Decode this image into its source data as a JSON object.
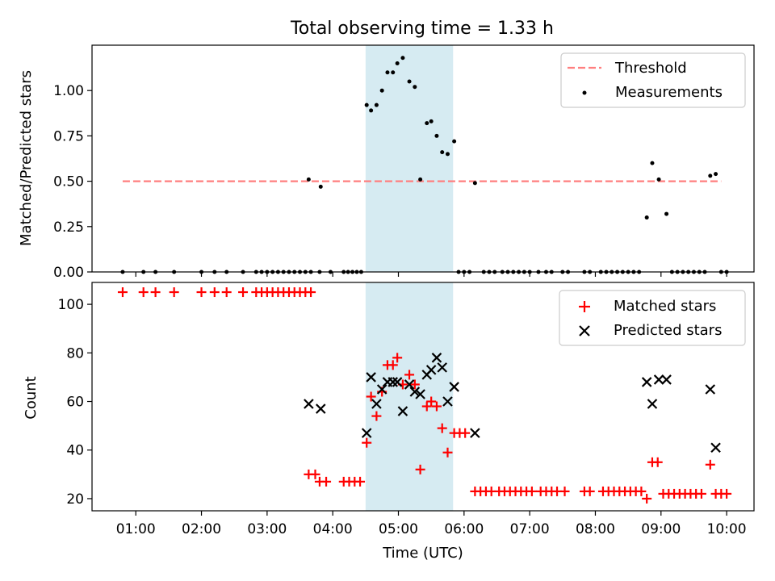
{
  "figure": {
    "title": "Total observing time = 1.33 h",
    "xlabel": "Time (UTC)",
    "xticks": [
      "01:00",
      "02:00",
      "03:00",
      "04:00",
      "05:00",
      "06:00",
      "07:00",
      "08:00",
      "09:00",
      "10:00"
    ],
    "band_color": "#add8e6"
  },
  "chart_data": [
    {
      "type": "scatter",
      "ylabel": "Matched/Predicted stars",
      "xlim": [
        "00:20",
        "10:25"
      ],
      "ylim": [
        0,
        1.25
      ],
      "yticks": [
        "0.00",
        "0.25",
        "0.50",
        "0.75",
        "1.00"
      ],
      "shaded_region": {
        "x": [
          "04:30",
          "05:50"
        ]
      },
      "legend": {
        "position": "top-right",
        "entries": [
          {
            "name": "Threshold",
            "color": "#ff7f7f"
          },
          {
            "name": "Measurements",
            "color": "#000000"
          }
        ]
      },
      "threshold": {
        "name": "Threshold",
        "value": 0.5,
        "x": [
          "00:48",
          "09:55"
        ],
        "color": "#ff7f7f"
      },
      "series": [
        {
          "name": "Measurements",
          "color": "#000000",
          "points": [
            [
              "00:48",
              0
            ],
            [
              "01:07",
              0
            ],
            [
              "01:18",
              0
            ],
            [
              "01:35",
              0
            ],
            [
              "02:00",
              0
            ],
            [
              "02:12",
              0
            ],
            [
              "02:23",
              0
            ],
            [
              "02:38",
              0
            ],
            [
              "02:50",
              0
            ],
            [
              "02:55",
              0
            ],
            [
              "03:00",
              0
            ],
            [
              "03:05",
              0
            ],
            [
              "03:10",
              0
            ],
            [
              "03:15",
              0
            ],
            [
              "03:20",
              0
            ],
            [
              "03:25",
              0
            ],
            [
              "03:30",
              0
            ],
            [
              "03:35",
              0
            ],
            [
              "03:40",
              0
            ],
            [
              "03:38",
              0.51
            ],
            [
              "03:48",
              0
            ],
            [
              "03:49",
              0.47
            ],
            [
              "03:58",
              0
            ],
            [
              "04:10",
              0
            ],
            [
              "04:14",
              0
            ],
            [
              "04:18",
              0
            ],
            [
              "04:22",
              0
            ],
            [
              "04:26",
              0
            ],
            [
              "04:31",
              0.92
            ],
            [
              "04:35",
              0.89
            ],
            [
              "04:40",
              0.92
            ],
            [
              "04:45",
              1.0
            ],
            [
              "04:50",
              1.1
            ],
            [
              "04:55",
              1.1
            ],
            [
              "04:59",
              1.15
            ],
            [
              "05:04",
              1.18
            ],
            [
              "05:10",
              1.05
            ],
            [
              "05:15",
              1.02
            ],
            [
              "05:20",
              0.51
            ],
            [
              "05:26",
              0.82
            ],
            [
              "05:30",
              0.83
            ],
            [
              "05:35",
              0.75
            ],
            [
              "05:40",
              0.66
            ],
            [
              "05:45",
              0.65
            ],
            [
              "05:51",
              0.72
            ],
            [
              "05:55",
              0
            ],
            [
              "06:00",
              0
            ],
            [
              "06:05",
              0
            ],
            [
              "06:10",
              0.49
            ],
            [
              "06:18",
              0
            ],
            [
              "06:23",
              0
            ],
            [
              "06:28",
              0
            ],
            [
              "06:35",
              0
            ],
            [
              "06:40",
              0
            ],
            [
              "06:45",
              0
            ],
            [
              "06:50",
              0
            ],
            [
              "06:55",
              0
            ],
            [
              "07:00",
              0
            ],
            [
              "07:08",
              0
            ],
            [
              "07:15",
              0
            ],
            [
              "07:20",
              0
            ],
            [
              "07:30",
              0
            ],
            [
              "07:35",
              0
            ],
            [
              "07:50",
              0
            ],
            [
              "07:55",
              0
            ],
            [
              "08:05",
              0
            ],
            [
              "08:10",
              0
            ],
            [
              "08:15",
              0
            ],
            [
              "08:20",
              0
            ],
            [
              "08:25",
              0
            ],
            [
              "08:30",
              0
            ],
            [
              "08:35",
              0
            ],
            [
              "08:40",
              0
            ],
            [
              "08:47",
              0.3
            ],
            [
              "08:52",
              0.6
            ],
            [
              "08:58",
              0.51
            ],
            [
              "09:05",
              0.32
            ],
            [
              "09:10",
              0
            ],
            [
              "09:15",
              0
            ],
            [
              "09:20",
              0
            ],
            [
              "09:25",
              0
            ],
            [
              "09:30",
              0
            ],
            [
              "09:35",
              0
            ],
            [
              "09:40",
              0
            ],
            [
              "09:45",
              0.53
            ],
            [
              "09:50",
              0.54
            ],
            [
              "09:55",
              0
            ],
            [
              "10:00",
              0
            ]
          ]
        }
      ]
    },
    {
      "type": "scatter",
      "ylabel": "Count",
      "xlim": [
        "00:20",
        "10:25"
      ],
      "ylim": [
        15,
        109
      ],
      "yticks": [
        "20",
        "40",
        "60",
        "80",
        "100"
      ],
      "shaded_region": {
        "x": [
          "04:30",
          "05:50"
        ]
      },
      "legend": {
        "position": "top-right",
        "entries": [
          {
            "name": "Matched stars",
            "color": "#ff0000",
            "marker": "+"
          },
          {
            "name": "Predicted stars",
            "color": "#000000",
            "marker": "x"
          }
        ]
      },
      "series": [
        {
          "name": "Matched stars",
          "color": "#ff0000",
          "marker": "+",
          "points": [
            [
              "00:48",
              105
            ],
            [
              "01:07",
              105
            ],
            [
              "01:18",
              105
            ],
            [
              "01:35",
              105
            ],
            [
              "02:00",
              105
            ],
            [
              "02:12",
              105
            ],
            [
              "02:23",
              105
            ],
            [
              "02:38",
              105
            ],
            [
              "02:50",
              105
            ],
            [
              "02:55",
              105
            ],
            [
              "03:00",
              105
            ],
            [
              "03:05",
              105
            ],
            [
              "03:10",
              105
            ],
            [
              "03:15",
              105
            ],
            [
              "03:20",
              105
            ],
            [
              "03:25",
              105
            ],
            [
              "03:30",
              105
            ],
            [
              "03:35",
              105
            ],
            [
              "03:40",
              105
            ],
            [
              "03:38",
              30
            ],
            [
              "03:44",
              30
            ],
            [
              "03:48",
              27
            ],
            [
              "03:54",
              27
            ],
            [
              "04:10",
              27
            ],
            [
              "04:15",
              27
            ],
            [
              "04:20",
              27
            ],
            [
              "04:25",
              27
            ],
            [
              "04:31",
              43
            ],
            [
              "04:35",
              62
            ],
            [
              "04:40",
              54
            ],
            [
              "04:45",
              64
            ],
            [
              "04:50",
              75
            ],
            [
              "04:55",
              75
            ],
            [
              "04:59",
              78
            ],
            [
              "05:04",
              67
            ],
            [
              "05:10",
              71
            ],
            [
              "05:15",
              67
            ],
            [
              "05:20",
              32
            ],
            [
              "05:26",
              58
            ],
            [
              "05:30",
              60
            ],
            [
              "05:35",
              58
            ],
            [
              "05:40",
              49
            ],
            [
              "05:45",
              39
            ],
            [
              "05:51",
              47
            ],
            [
              "05:56",
              47
            ],
            [
              "06:01",
              47
            ],
            [
              "06:10",
              23
            ],
            [
              "06:15",
              23
            ],
            [
              "06:20",
              23
            ],
            [
              "06:25",
              23
            ],
            [
              "06:32",
              23
            ],
            [
              "06:37",
              23
            ],
            [
              "06:42",
              23
            ],
            [
              "06:47",
              23
            ],
            [
              "06:52",
              23
            ],
            [
              "06:57",
              23
            ],
            [
              "07:02",
              23
            ],
            [
              "07:10",
              23
            ],
            [
              "07:15",
              23
            ],
            [
              "07:20",
              23
            ],
            [
              "07:25",
              23
            ],
            [
              "07:32",
              23
            ],
            [
              "07:50",
              23
            ],
            [
              "07:55",
              23
            ],
            [
              "08:07",
              23
            ],
            [
              "08:12",
              23
            ],
            [
              "08:17",
              23
            ],
            [
              "08:22",
              23
            ],
            [
              "08:27",
              23
            ],
            [
              "08:32",
              23
            ],
            [
              "08:37",
              23
            ],
            [
              "08:42",
              23
            ],
            [
              "08:47",
              20
            ],
            [
              "08:52",
              35
            ],
            [
              "08:57",
              35
            ],
            [
              "09:02",
              22
            ],
            [
              "09:07",
              22
            ],
            [
              "09:12",
              22
            ],
            [
              "09:17",
              22
            ],
            [
              "09:22",
              22
            ],
            [
              "09:27",
              22
            ],
            [
              "09:32",
              22
            ],
            [
              "09:37",
              22
            ],
            [
              "09:45",
              34
            ],
            [
              "09:50",
              22
            ],
            [
              "09:55",
              22
            ],
            [
              "10:00",
              22
            ]
          ]
        },
        {
          "name": "Predicted stars",
          "color": "#000000",
          "marker": "x",
          "points": [
            [
              "03:38",
              59
            ],
            [
              "03:49",
              57
            ],
            [
              "04:31",
              47
            ],
            [
              "04:35",
              70
            ],
            [
              "04:40",
              59
            ],
            [
              "04:45",
              65
            ],
            [
              "04:50",
              68
            ],
            [
              "04:55",
              68
            ],
            [
              "04:59",
              68
            ],
            [
              "05:04",
              56
            ],
            [
              "05:10",
              67
            ],
            [
              "05:15",
              64
            ],
            [
              "05:20",
              63
            ],
            [
              "05:26",
              71
            ],
            [
              "05:30",
              73
            ],
            [
              "05:35",
              78
            ],
            [
              "05:40",
              74
            ],
            [
              "05:45",
              60
            ],
            [
              "05:51",
              66
            ],
            [
              "06:10",
              47
            ],
            [
              "08:47",
              68
            ],
            [
              "08:52",
              59
            ],
            [
              "08:58",
              69
            ],
            [
              "09:05",
              69
            ],
            [
              "09:45",
              65
            ],
            [
              "09:50",
              41
            ]
          ]
        }
      ]
    }
  ]
}
